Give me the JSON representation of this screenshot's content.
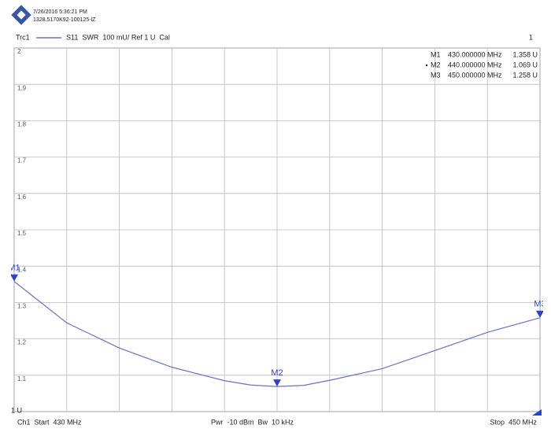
{
  "header": {
    "datetime": "7/26/2016 5:36:21 PM",
    "device_id": "1328.5170K92-100125-lZ",
    "trace": "Trc1",
    "trace_desc": "S11  SWR  100 mU/ Ref 1 U  Cal",
    "channel": "1"
  },
  "footer": {
    "start": "Ch1  Start  430 MHz",
    "power": "Pwr  -10 dBm  Bw  10 kHz",
    "stop": "Stop  450 MHz"
  },
  "chart_data": {
    "type": "line",
    "x": [
      430,
      432,
      434,
      436,
      438,
      439,
      440,
      441,
      442,
      444,
      446,
      448,
      450
    ],
    "values": [
      1.358,
      1.244,
      1.175,
      1.122,
      1.085,
      1.073,
      1.069,
      1.072,
      1.086,
      1.118,
      1.168,
      1.218,
      1.258
    ],
    "color": "#6b70c8",
    "xlim": [
      430,
      450
    ],
    "xgrid": [
      430,
      432,
      434,
      436,
      438,
      440,
      442,
      444,
      446,
      448,
      450
    ],
    "ylim": [
      1,
      2
    ],
    "yticks": [
      {
        "value": 1,
        "label": "1 U"
      },
      1.1,
      1.2,
      1.3,
      1.4,
      1.5,
      1.6,
      1.7,
      1.8,
      1.9,
      2
    ],
    "grid": true,
    "markers": [
      {
        "name": "M1",
        "x": 430,
        "x_label": "430.000000 MHz",
        "value": 1.358,
        "value_label": "1.358 U"
      },
      {
        "name": "M2",
        "x": 440,
        "x_label": "440.000000 MHz",
        "value": 1.069,
        "value_label": "1.069 U"
      },
      {
        "name": "M3",
        "x": 450,
        "x_label": "450.000000 MHz",
        "value": 1.258,
        "value_label": "1.258 U"
      }
    ],
    "marker_color": "#2a44c8"
  }
}
